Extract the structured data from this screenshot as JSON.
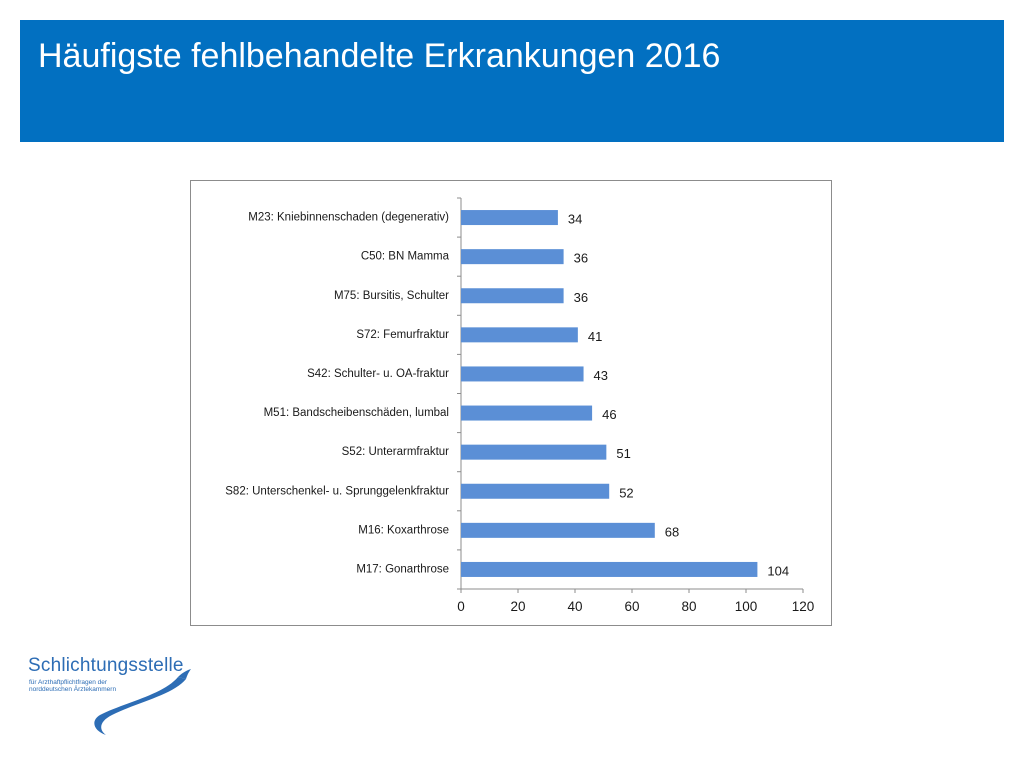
{
  "slide": {
    "title": "Häufigste fehlbehandelte Erkrankungen 2016"
  },
  "logo": {
    "name": "Schlichtungsstelle",
    "subline_1": "für Arzthaftpflichtfragen der",
    "subline_2": "norddeutschen Ärztekammern"
  },
  "colors": {
    "header_band": "#0270c1",
    "bar": "#5b8fd6",
    "logo": "#2d6db5"
  },
  "chart_data": {
    "type": "bar",
    "orientation": "horizontal",
    "title": "",
    "xlabel": "",
    "ylabel": "",
    "xlim": [
      0,
      120
    ],
    "x_ticks": [
      0,
      20,
      40,
      60,
      80,
      100,
      120
    ],
    "grid": false,
    "legend": "none",
    "categories": [
      "M23: Kniebinnenschaden (degenerativ)",
      "C50: BN Mamma",
      "M75: Bursitis, Schulter",
      "S72: Femurfraktur",
      "S42: Schulter- u. OA-fraktur",
      "M51: Bandscheibenschäden, lumbal",
      "S52: Unterarmfraktur",
      "S82: Unterschenkel- u. Sprunggelenkfraktur",
      "M16: Koxarthrose",
      "M17: Gonarthrose"
    ],
    "values": [
      34,
      36,
      36,
      41,
      43,
      46,
      51,
      52,
      68,
      104
    ]
  }
}
